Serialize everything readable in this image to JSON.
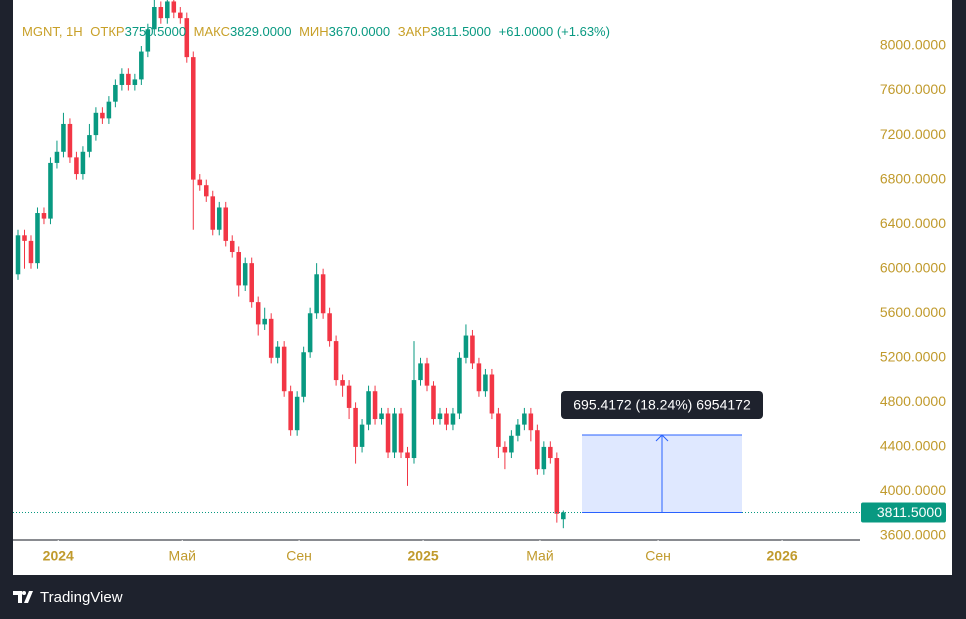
{
  "chart_data": {
    "type": "candlestick",
    "header": {
      "symbol": "MGNT, 1H",
      "open_label": "ОТКР",
      "open": {
        "value": 3750.5,
        "label": "3750.5000"
      },
      "high_label": "МАКС",
      "high": {
        "value": 3829,
        "label": "3829.0000"
      },
      "low_label": "МИН",
      "low": {
        "value": 3670,
        "label": "3670.0000"
      },
      "close_label": "ЗАКР",
      "close": {
        "value": 3811.5,
        "label": "3811.5000"
      },
      "change": "+61.0000 (+1.63%)"
    },
    "x": [
      0,
      1,
      2,
      3,
      4,
      5,
      6,
      7,
      8,
      9,
      10,
      11,
      12,
      13,
      14,
      15,
      16,
      17,
      18,
      19,
      20,
      21,
      22,
      23,
      24,
      25,
      26,
      27,
      28,
      29,
      30,
      31,
      32,
      33,
      34,
      35,
      36,
      37,
      38,
      39,
      40,
      41,
      42,
      43,
      44,
      45,
      46,
      47,
      48,
      49,
      50,
      51,
      52,
      53,
      54,
      55,
      56,
      57,
      58,
      59,
      60,
      61,
      62,
      63,
      64,
      65,
      66,
      67,
      68,
      69,
      70,
      71,
      72,
      73,
      74,
      75,
      76,
      77,
      78,
      79,
      80,
      81,
      82,
      83,
      84
    ],
    "open": [
      5950,
      6300,
      6250,
      6050,
      6500,
      6450,
      6950,
      7050,
      7300,
      7000,
      6850,
      7050,
      7200,
      7400,
      7350,
      7500,
      7650,
      7750,
      7650,
      7700,
      7950,
      8150,
      8350,
      8250,
      8400,
      8300,
      8250,
      7900,
      6800,
      6750,
      6650,
      6350,
      6550,
      6250,
      6150,
      5850,
      6050,
      5700,
      5500,
      5550,
      5200,
      5300,
      4900,
      4550,
      4850,
      5250,
      5600,
      5950,
      5600,
      5350,
      5000,
      4950,
      4750,
      4400,
      4600,
      4900,
      4650,
      4700,
      4350,
      4700,
      4350,
      4300,
      5000,
      5150,
      4950,
      4650,
      4700,
      4600,
      4700,
      5200,
      5400,
      5150,
      4900,
      5050,
      4700,
      4400,
      4350,
      4500,
      4600,
      4700,
      4550,
      4200,
      4400,
      4300,
      3750.5
    ],
    "high": [
      6350,
      6350,
      6300,
      6550,
      6550,
      7000,
      7150,
      7400,
      7350,
      7050,
      7100,
      7300,
      7450,
      7450,
      7550,
      7700,
      7800,
      7800,
      7750,
      8000,
      8200,
      8450,
      8400,
      8450,
      8450,
      8350,
      8300,
      7950,
      6850,
      6800,
      6700,
      6600,
      6600,
      6300,
      6200,
      6100,
      6100,
      5750,
      5650,
      5600,
      5350,
      5350,
      4950,
      4900,
      5300,
      5650,
      6050,
      6000,
      5650,
      5400,
      5050,
      5000,
      4800,
      4650,
      4950,
      4950,
      4750,
      4750,
      4750,
      4750,
      4400,
      5350,
      5200,
      5200,
      4990,
      4750,
      4750,
      4750,
      5250,
      5500,
      5450,
      5200,
      5100,
      5100,
      4750,
      4450,
      4550,
      4650,
      4750,
      4750,
      4600,
      4450,
      4450,
      4350,
      3829
    ],
    "low": [
      5900,
      6000,
      6000,
      6000,
      6400,
      6400,
      6900,
      7000,
      6950,
      6800,
      6800,
      7000,
      7150,
      7300,
      7300,
      7450,
      7600,
      7600,
      7600,
      7650,
      7900,
      8100,
      8200,
      8200,
      8250,
      8200,
      7850,
      6350,
      6700,
      6600,
      6300,
      6300,
      6200,
      6100,
      5750,
      5800,
      5650,
      5400,
      5450,
      5150,
      5150,
      4850,
      4500,
      4500,
      4800,
      5200,
      5550,
      5550,
      5300,
      4950,
      4850,
      4650,
      4250,
      4350,
      4550,
      4600,
      4600,
      4300,
      4300,
      4300,
      4050,
      4250,
      4950,
      4900,
      4600,
      4600,
      4550,
      4550,
      4650,
      5150,
      5100,
      4850,
      4850,
      4650,
      4300,
      4200,
      4300,
      4450,
      4550,
      4450,
      4150,
      4150,
      4250,
      3720,
      3670
    ],
    "close": [
      6300,
      6250,
      6050,
      6500,
      6450,
      6950,
      7050,
      7300,
      7000,
      6850,
      7050,
      7200,
      7400,
      7350,
      7500,
      7650,
      7750,
      7650,
      7700,
      7950,
      8150,
      8350,
      8250,
      8400,
      8300,
      8250,
      7900,
      6800,
      6750,
      6650,
      6350,
      6550,
      6250,
      6150,
      5850,
      6050,
      5700,
      5500,
      5550,
      5200,
      5300,
      4900,
      4550,
      4850,
      5250,
      5600,
      5950,
      5600,
      5350,
      5000,
      4950,
      4750,
      4400,
      4600,
      4900,
      4650,
      4700,
      4350,
      4700,
      4350,
      4300,
      5000,
      5150,
      4950,
      4650,
      4700,
      4600,
      4700,
      5200,
      5400,
      5150,
      4900,
      5050,
      4700,
      4400,
      4350,
      4500,
      4600,
      4700,
      4550,
      4200,
      4400,
      4300,
      3800,
      3811.5
    ],
    "up_color": "#089981",
    "down_color": "#f23645",
    "xlim": [
      -0.77,
      129.7
    ],
    "xticks": [
      {
        "value": 6.2,
        "label": "2024"
      },
      {
        "value": 25.3,
        "label": "Май"
      },
      {
        "value": 43.3,
        "label": "Сен"
      },
      {
        "value": 62.4,
        "label": "2025"
      },
      {
        "value": 80.4,
        "label": "Май"
      },
      {
        "value": 98.6,
        "label": "Сен"
      },
      {
        "value": 117.7,
        "label": "2026"
      }
    ],
    "ylim": [
      3564,
      8413
    ],
    "yticks": [
      {
        "value": 3600,
        "label": "3600.0000"
      },
      {
        "value": 4000,
        "label": "4000.0000"
      },
      {
        "value": 4400,
        "label": "4400.0000"
      },
      {
        "value": 4800,
        "label": "4800.0000"
      },
      {
        "value": 5200,
        "label": "5200.0000"
      },
      {
        "value": 5600,
        "label": "5600.0000"
      },
      {
        "value": 6000,
        "label": "6000.0000"
      },
      {
        "value": 6400,
        "label": "6400.0000"
      },
      {
        "value": 6800,
        "label": "6800.0000"
      },
      {
        "value": 7200,
        "label": "7200.0000"
      },
      {
        "value": 7600,
        "label": "7600.0000"
      },
      {
        "value": 8000,
        "label": "8000.0000"
      }
    ],
    "last_price": {
      "value": 3811.5,
      "label": "3811.5000"
    },
    "measure": {
      "from": 3811.5,
      "to": 4506.9172,
      "label": "695.4172 (18.24%) 6954172"
    }
  },
  "footer": {
    "brand": "TradingView"
  }
}
